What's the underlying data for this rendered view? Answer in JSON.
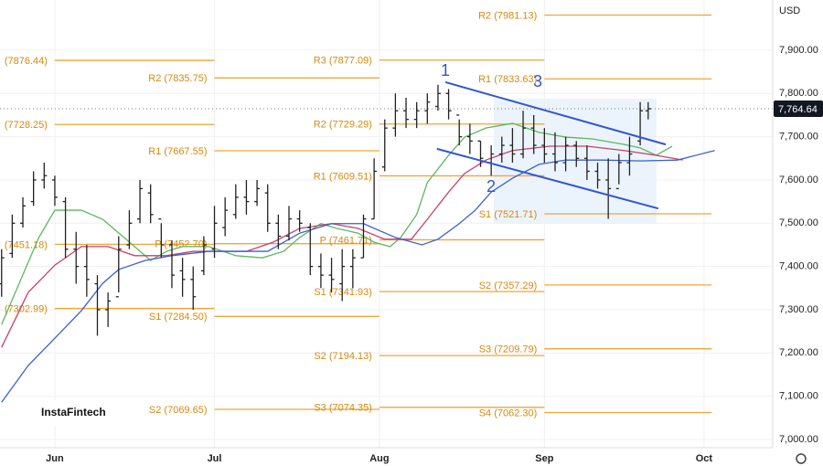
{
  "chart_data": {
    "type": "ohlc",
    "currency": "USD",
    "watermark": "InstaFintech",
    "xlim": [
      -10.3,
      134.9
    ],
    "ylim": [
      6981,
      8016
    ],
    "xticks": [
      {
        "value": 0,
        "label": "Jun"
      },
      {
        "value": 30,
        "label": "Jul"
      },
      {
        "value": 61,
        "label": "Aug"
      },
      {
        "value": 92,
        "label": "Sep"
      },
      {
        "value": 122,
        "label": "Oct"
      }
    ],
    "yticks": [
      {
        "value": 7000,
        "label": "7,000.00"
      },
      {
        "value": 7100,
        "label": "7,100.00"
      },
      {
        "value": 7200,
        "label": "7,200.00"
      },
      {
        "value": 7300,
        "label": "7,300.00"
      },
      {
        "value": 7400,
        "label": "7,400.00"
      },
      {
        "value": 7500,
        "label": "7,500.00"
      },
      {
        "value": 7600,
        "label": "7,600.00"
      },
      {
        "value": 7700,
        "label": "7,700.00"
      },
      {
        "value": 7800,
        "label": "7,800.00"
      },
      {
        "value": 7900,
        "label": "7,900.00"
      }
    ],
    "grid": true,
    "last_price": {
      "value": 7764.64,
      "label": "7,764.64"
    },
    "bar_color": "#222222",
    "level_color": "#f0a53a",
    "pivot_levels": [
      {
        "start": 0,
        "end": 30,
        "levels": [
          {
            "value": 7876.44,
            "label": "(7876.44)"
          },
          {
            "value": 7728.25,
            "label": "(7728.25)"
          },
          {
            "value": 7451.18,
            "label": "(7451.18)"
          },
          {
            "value": 7302.99,
            "label": "(7302.99)"
          }
        ]
      },
      {
        "start": 30,
        "end": 61,
        "levels": [
          {
            "value": 7835.75,
            "label": "R2 (7835.75)"
          },
          {
            "value": 7667.55,
            "label": "R1 (7667.55)"
          },
          {
            "value": 7452.7,
            "label": "P (7452.70)"
          },
          {
            "value": 7284.5,
            "label": "S1 (7284.50)"
          },
          {
            "value": 7069.65,
            "label": "S2 (7069.65)"
          }
        ]
      },
      {
        "start": 61,
        "end": 92,
        "levels": [
          {
            "value": 7877.09,
            "label": "R3 (7877.09)"
          },
          {
            "value": 7729.29,
            "label": "R2 (7729.29)"
          },
          {
            "value": 7609.51,
            "label": "R1 (7609.51)"
          },
          {
            "value": 7461.71,
            "label": "P (7461.71)"
          },
          {
            "value": 7341.93,
            "label": "S1 (7341.93)"
          },
          {
            "value": 7194.13,
            "label": "S2 (7194.13)"
          },
          {
            "value": 7074.35,
            "label": "S3 (7074.35)"
          }
        ]
      },
      {
        "start": 92,
        "end": 123.4,
        "levels": [
          {
            "value": 7981.13,
            "label": "R2 (7981.13)"
          },
          {
            "value": 7833.63,
            "label": "R1 (7833.63)"
          },
          {
            "value": 7521.71,
            "label": "S1 (7521.71)"
          },
          {
            "value": 7357.29,
            "label": "S2 (7357.29)"
          },
          {
            "value": 7209.79,
            "label": "S3 (7209.79)"
          },
          {
            "value": 7062.3,
            "label": "S4 (7062.30)"
          }
        ]
      }
    ],
    "bars": {
      "x": [
        -10,
        -8,
        -6,
        -4,
        -2,
        0,
        2,
        4,
        6,
        8,
        10,
        12,
        14,
        16,
        18,
        20,
        22,
        24,
        26,
        28,
        30,
        32,
        34,
        36,
        38,
        40,
        42,
        44,
        46,
        48,
        50,
        52,
        54,
        56,
        58,
        60,
        62,
        64,
        66,
        68,
        70,
        72,
        74,
        76,
        78,
        80,
        82,
        84,
        86,
        88,
        90,
        92,
        94,
        96,
        98,
        100,
        102,
        104,
        106,
        108,
        110,
        111.5
      ],
      "open": [
        7360,
        7430,
        7500,
        7550,
        7600,
        7600,
        7550,
        7440,
        7400,
        7360,
        7300,
        7330,
        7450,
        7510,
        7570,
        7510,
        7450,
        7390,
        7370,
        7390,
        7440,
        7490,
        7520,
        7560,
        7550,
        7570,
        7500,
        7470,
        7510,
        7490,
        7400,
        7380,
        7360,
        7400,
        7420,
        7510,
        7630,
        7720,
        7760,
        7740,
        7760,
        7770,
        7800,
        7750,
        7700,
        7690,
        7640,
        7660,
        7680,
        7660,
        7720,
        7680,
        7660,
        7640,
        7680,
        7650,
        7620,
        7600,
        7580,
        7640,
        7690,
        7760
      ],
      "high": [
        7440,
        7520,
        7560,
        7620,
        7640,
        7610,
        7560,
        7480,
        7450,
        7380,
        7340,
        7470,
        7530,
        7600,
        7590,
        7500,
        7460,
        7420,
        7400,
        7470,
        7540,
        7560,
        7590,
        7600,
        7600,
        7590,
        7520,
        7540,
        7530,
        7500,
        7430,
        7420,
        7440,
        7440,
        7520,
        7650,
        7740,
        7800,
        7790,
        7780,
        7800,
        7820,
        7810,
        7740,
        7730,
        7690,
        7680,
        7700,
        7720,
        7760,
        7750,
        7720,
        7710,
        7700,
        7690,
        7680,
        7640,
        7650,
        7660,
        7700,
        7780,
        7780
      ],
      "low": [
        7330,
        7420,
        7490,
        7540,
        7580,
        7540,
        7420,
        7360,
        7330,
        7240,
        7260,
        7340,
        7440,
        7500,
        7500,
        7420,
        7350,
        7330,
        7300,
        7380,
        7420,
        7470,
        7510,
        7520,
        7540,
        7480,
        7440,
        7460,
        7480,
        7380,
        7350,
        7340,
        7320,
        7350,
        7420,
        7510,
        7620,
        7700,
        7720,
        7720,
        7730,
        7760,
        7740,
        7680,
        7660,
        7630,
        7610,
        7640,
        7640,
        7650,
        7660,
        7640,
        7620,
        7620,
        7630,
        7600,
        7580,
        7510,
        7590,
        7610,
        7680,
        7740
      ],
      "close": [
        7420,
        7500,
        7540,
        7600,
        7610,
        7560,
        7440,
        7400,
        7370,
        7300,
        7320,
        7440,
        7500,
        7580,
        7520,
        7450,
        7380,
        7370,
        7330,
        7450,
        7500,
        7530,
        7560,
        7550,
        7580,
        7500,
        7470,
        7510,
        7500,
        7400,
        7380,
        7370,
        7400,
        7420,
        7510,
        7620,
        7720,
        7760,
        7740,
        7760,
        7780,
        7800,
        7760,
        7700,
        7690,
        7650,
        7660,
        7680,
        7660,
        7720,
        7680,
        7660,
        7640,
        7680,
        7650,
        7620,
        7600,
        7580,
        7640,
        7660,
        7760,
        7764.64
      ]
    },
    "lines": [
      {
        "color": "#5cb85c",
        "x": [
          -10,
          -3,
          0,
          5,
          9,
          11,
          15,
          18,
          21,
          24,
          29,
          34,
          39,
          43,
          46,
          50,
          53,
          57,
          60,
          63,
          65,
          68,
          70,
          74,
          77,
          81,
          86,
          91,
          96,
          101,
          107,
          110,
          113,
          116
        ],
        "values": [
          7266,
          7467,
          7530,
          7530,
          7509,
          7488,
          7446,
          7414,
          7435,
          7446,
          7446,
          7425,
          7420,
          7435,
          7467,
          7499,
          7488,
          7477,
          7456,
          7446,
          7467,
          7520,
          7594,
          7657,
          7699,
          7720,
          7731,
          7710,
          7699,
          7695,
          7682,
          7674,
          7657,
          7678
        ]
      },
      {
        "color": "#c9406a",
        "x": [
          -10,
          -5,
          0,
          5,
          10,
          15,
          21,
          26,
          31,
          36,
          41,
          46,
          52,
          57,
          62,
          67,
          70,
          74,
          77,
          81,
          86,
          93,
          100,
          107,
          113,
          118
        ],
        "values": [
          7213,
          7340,
          7403,
          7446,
          7446,
          7425,
          7425,
          7435,
          7435,
          7435,
          7456,
          7488,
          7499,
          7488,
          7463,
          7463,
          7509,
          7572,
          7615,
          7646,
          7668,
          7678,
          7678,
          7668,
          7657,
          7646
        ]
      },
      {
        "color": "#3b5fd0",
        "x": [
          -10,
          -5,
          0,
          5,
          9,
          12,
          17,
          22,
          29,
          40,
          46,
          52,
          58,
          64,
          69,
          72,
          76,
          79,
          82,
          86,
          91,
          96,
          103,
          110,
          117,
          124
        ],
        "values": [
          7086,
          7171,
          7234,
          7298,
          7361,
          7393,
          7414,
          7425,
          7435,
          7435,
          7477,
          7499,
          7499,
          7467,
          7450,
          7463,
          7499,
          7530,
          7572,
          7604,
          7636,
          7646,
          7646,
          7644,
          7646,
          7668
        ]
      }
    ],
    "channels": {
      "color": "#3355d6",
      "lines": [
        {
          "x": [
            73.4,
            114.8
          ],
          "values": [
            7826,
            7682
          ]
        },
        {
          "x": [
            71.8,
            113.4
          ],
          "values": [
            7672,
            7534
          ]
        }
      ]
    },
    "annotations": [
      "1",
      "2",
      "3"
    ]
  }
}
